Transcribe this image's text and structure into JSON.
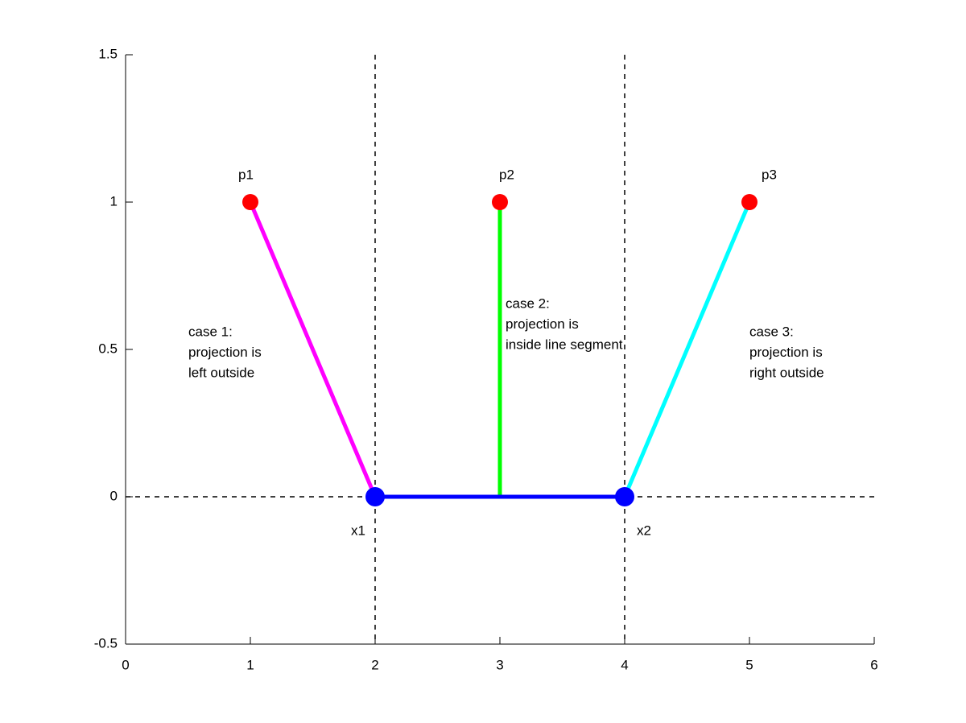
{
  "chart_data": {
    "type": "line",
    "xlim": [
      0,
      6
    ],
    "ylim": [
      -0.5,
      1.5
    ],
    "xticks": [
      0,
      1,
      2,
      3,
      4,
      5,
      6
    ],
    "yticks": [
      -0.5,
      0,
      0.5,
      1,
      1.5
    ],
    "reference_lines": {
      "style": "dashed",
      "color": "#000000",
      "vlines": [
        2,
        4
      ],
      "hlines": [
        0
      ]
    },
    "series": [
      {
        "mode": "line",
        "color": "#ff00ff",
        "x": [
          1,
          2
        ],
        "values": [
          1,
          0
        ]
      },
      {
        "mode": "line",
        "color": "#00ff00",
        "x": [
          3,
          3
        ],
        "values": [
          1,
          0
        ]
      },
      {
        "mode": "line",
        "color": "#00ffff",
        "x": [
          5,
          4
        ],
        "values": [
          1,
          0
        ]
      },
      {
        "mode": "line",
        "color": "#0000ff",
        "x": [
          2,
          4
        ],
        "values": [
          0,
          0
        ]
      },
      {
        "mode": "markers",
        "color": "#ff0000",
        "x": [
          1,
          3,
          5
        ],
        "values": [
          1,
          1,
          1
        ]
      },
      {
        "mode": "markers",
        "color": "#0000ff",
        "x": [
          2,
          4
        ],
        "values": [
          0,
          0
        ]
      }
    ],
    "annotations": [
      [
        "p1"
      ],
      [
        "p2"
      ],
      [
        "p3"
      ],
      [
        "x1"
      ],
      [
        "x2"
      ],
      [
        "case 1:",
        "projection is",
        "left outside"
      ],
      [
        "case 2:",
        "projection is",
        "inside line segment"
      ],
      [
        "case 3:",
        "projection is",
        "right outside"
      ]
    ]
  }
}
